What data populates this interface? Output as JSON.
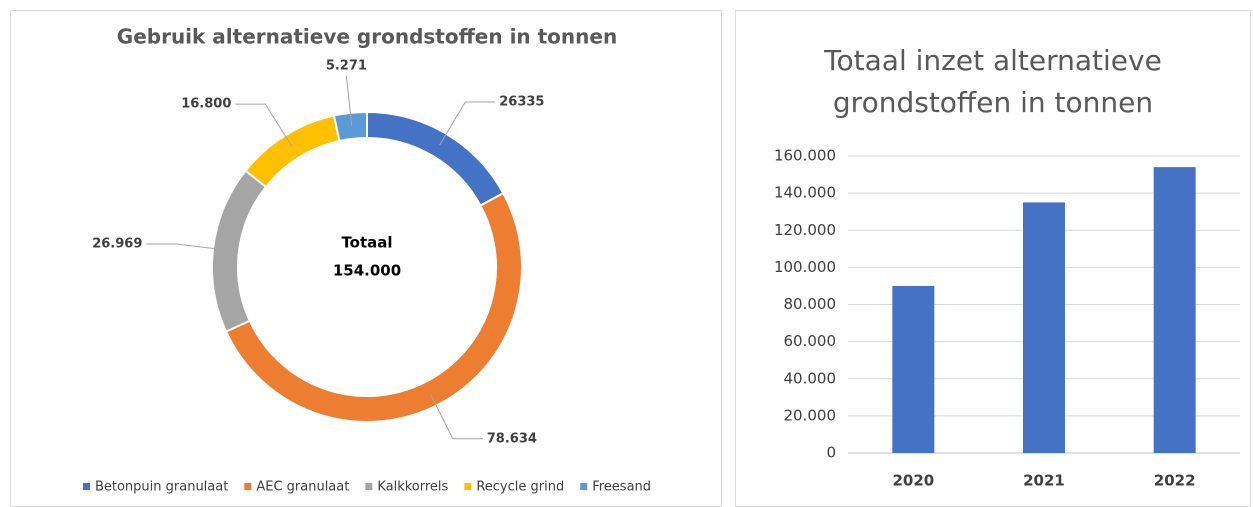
{
  "chart_data": [
    {
      "type": "donut",
      "title": "Gebruik alternatieve grondstoffen in tonnen",
      "categories": [
        "Betonpuin granulaat",
        "AEC granulaat",
        "Kalkkorrels",
        "Recycle grind",
        "Freesand"
      ],
      "values": [
        26335,
        78634,
        26969,
        16800,
        5271
      ],
      "value_labels": [
        "26335",
        "78.634",
        "26.969",
        "16.800",
        "5.271"
      ],
      "colors": [
        "#4472c4",
        "#ed7d31",
        "#a5a5a5",
        "#ffc000",
        "#5b9bd5"
      ],
      "center_text": [
        "Totaal",
        "154.000"
      ],
      "legend": "bottom"
    },
    {
      "type": "bar",
      "title": "Totaal inzet alternatieve grondstoffen in tonnen",
      "categories": [
        "2020",
        "2021",
        "2022"
      ],
      "values": [
        90000,
        135000,
        154000
      ],
      "color": "#4472c4",
      "ylim": [
        0,
        160000
      ],
      "yticks": [
        0,
        {
          "value": 20000,
          "label": "20.000"
        },
        {
          "value": 40000,
          "label": "40.000"
        },
        {
          "value": 60000,
          "label": "60.000"
        },
        {
          "value": 80000,
          "label": "80.000"
        },
        {
          "value": 100000,
          "label": "100.000"
        },
        {
          "value": 120000,
          "label": "120.000"
        },
        {
          "value": 140000,
          "label": "140.000"
        },
        {
          "value": 160000,
          "label": "160.000"
        }
      ],
      "grid": true
    }
  ]
}
